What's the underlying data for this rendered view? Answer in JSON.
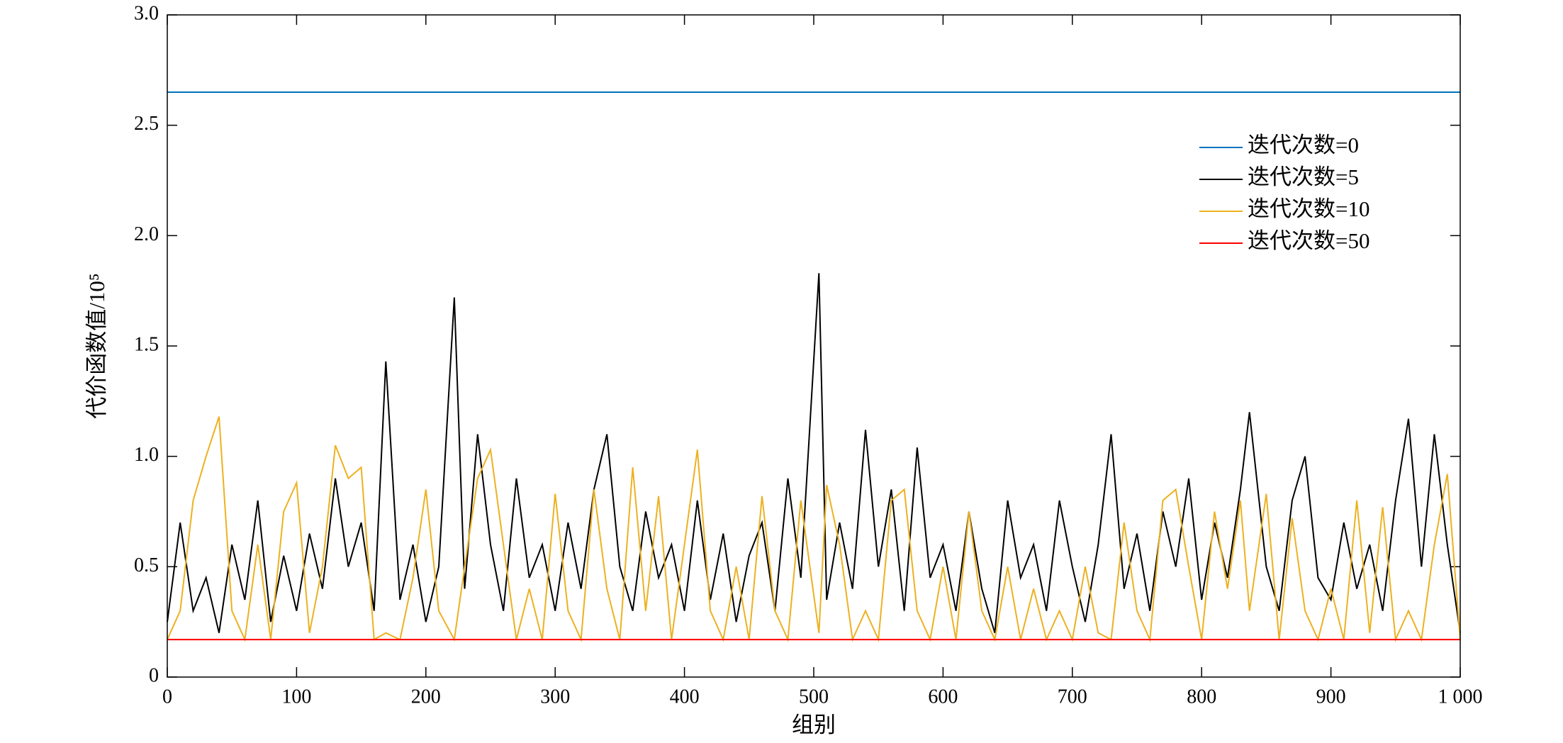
{
  "chart_data": {
    "type": "line",
    "xlabel": "组别",
    "ylabel": "代价函数值/10⁵",
    "xlim": [
      0,
      1000
    ],
    "ylim": [
      0,
      3
    ],
    "xticks": [
      0,
      100,
      200,
      300,
      400,
      500,
      600,
      700,
      800,
      900,
      {
        "value": 1000,
        "label": "1 000"
      }
    ],
    "yticks": [
      0,
      0.5,
      {
        "value": 1,
        "label": "1.0"
      },
      1.5,
      {
        "value": 2,
        "label": "2.0"
      },
      2.5,
      {
        "value": 3,
        "label": "3.0"
      }
    ],
    "legend": "upper right",
    "x": [
      0,
      10,
      20,
      30,
      40,
      50,
      60,
      70,
      80,
      90,
      100,
      110,
      120,
      130,
      140,
      150,
      160,
      169,
      180,
      190,
      200,
      210,
      222,
      230,
      240,
      250,
      260,
      270,
      280,
      290,
      300,
      310,
      320,
      330,
      340,
      350,
      360,
      370,
      380,
      390,
      400,
      410,
      420,
      430,
      440,
      450,
      460,
      470,
      480,
      490,
      504,
      510,
      520,
      530,
      540,
      550,
      560,
      570,
      580,
      590,
      600,
      610,
      620,
      630,
      640,
      650,
      660,
      670,
      680,
      690,
      700,
      710,
      720,
      730,
      740,
      750,
      760,
      770,
      780,
      790,
      800,
      810,
      820,
      830,
      837,
      850,
      860,
      870,
      880,
      890,
      900,
      910,
      920,
      930,
      940,
      950,
      960,
      970,
      980,
      990,
      1000
    ],
    "series": [
      {
        "name": "迭代次数=0",
        "color": "#0072bd",
        "values": [
          2.65,
          2.65,
          2.65,
          2.65,
          2.65,
          2.65,
          2.65,
          2.65,
          2.65,
          2.65,
          2.65,
          2.65,
          2.65,
          2.65,
          2.65,
          2.65,
          2.65,
          2.65,
          2.65,
          2.65,
          2.65,
          2.65,
          2.65,
          2.65,
          2.65,
          2.65,
          2.65,
          2.65,
          2.65,
          2.65,
          2.65,
          2.65,
          2.65,
          2.65,
          2.65,
          2.65,
          2.65,
          2.65,
          2.65,
          2.65,
          2.65,
          2.65,
          2.65,
          2.65,
          2.65,
          2.65,
          2.65,
          2.65,
          2.65,
          2.65,
          2.65,
          2.65,
          2.65,
          2.65,
          2.65,
          2.65,
          2.65,
          2.65,
          2.65,
          2.65,
          2.65,
          2.65,
          2.65,
          2.65,
          2.65,
          2.65,
          2.65,
          2.65,
          2.65,
          2.65,
          2.65,
          2.65,
          2.65,
          2.65,
          2.65,
          2.65,
          2.65,
          2.65,
          2.65,
          2.65,
          2.65,
          2.65,
          2.65,
          2.65,
          2.65,
          2.65,
          2.65,
          2.65,
          2.65,
          2.65,
          2.65,
          2.65,
          2.65,
          2.65,
          2.65,
          2.65,
          2.65,
          2.65,
          2.65,
          2.65,
          2.65
        ]
      },
      {
        "name": "迭代次数=5",
        "color": "#000000",
        "values": [
          0.25,
          0.7,
          0.3,
          0.45,
          0.2,
          0.6,
          0.35,
          0.8,
          0.25,
          0.55,
          0.3,
          0.65,
          0.4,
          0.9,
          0.5,
          0.7,
          0.3,
          1.43,
          0.35,
          0.6,
          0.25,
          0.5,
          1.72,
          0.4,
          1.1,
          0.6,
          0.3,
          0.9,
          0.45,
          0.6,
          0.3,
          0.7,
          0.4,
          0.85,
          1.1,
          0.5,
          0.3,
          0.75,
          0.45,
          0.6,
          0.3,
          0.8,
          0.35,
          0.65,
          0.25,
          0.55,
          0.7,
          0.3,
          0.9,
          0.45,
          1.83,
          0.35,
          0.7,
          0.4,
          1.12,
          0.5,
          0.85,
          0.3,
          1.04,
          0.45,
          0.6,
          0.3,
          0.75,
          0.4,
          0.2,
          0.8,
          0.45,
          0.6,
          0.3,
          0.8,
          0.5,
          0.25,
          0.6,
          1.1,
          0.4,
          0.65,
          0.3,
          0.75,
          0.5,
          0.9,
          0.35,
          0.7,
          0.45,
          0.85,
          1.2,
          0.5,
          0.3,
          0.8,
          1.0,
          0.45,
          0.35,
          0.7,
          0.4,
          0.6,
          0.3,
          0.8,
          1.17,
          0.5,
          1.1,
          0.6,
          0.2
        ]
      },
      {
        "name": "迭代次数=10",
        "color": "#edb120",
        "values": [
          0.17,
          0.3,
          0.8,
          1.0,
          1.18,
          0.3,
          0.17,
          0.6,
          0.17,
          0.75,
          0.88,
          0.2,
          0.5,
          1.05,
          0.9,
          0.95,
          0.17,
          0.2,
          0.17,
          0.45,
          0.85,
          0.3,
          0.17,
          0.5,
          0.9,
          1.03,
          0.6,
          0.17,
          0.4,
          0.17,
          0.83,
          0.3,
          0.17,
          0.85,
          0.4,
          0.17,
          0.95,
          0.3,
          0.82,
          0.17,
          0.6,
          1.03,
          0.3,
          0.17,
          0.5,
          0.17,
          0.82,
          0.3,
          0.17,
          0.8,
          0.2,
          0.87,
          0.6,
          0.17,
          0.3,
          0.17,
          0.8,
          0.85,
          0.3,
          0.17,
          0.5,
          0.17,
          0.75,
          0.3,
          0.17,
          0.5,
          0.17,
          0.4,
          0.17,
          0.3,
          0.17,
          0.5,
          0.2,
          0.17,
          0.7,
          0.3,
          0.17,
          0.8,
          0.85,
          0.5,
          0.17,
          0.75,
          0.4,
          0.8,
          0.3,
          0.83,
          0.17,
          0.72,
          0.3,
          0.17,
          0.4,
          0.17,
          0.8,
          0.2,
          0.77,
          0.17,
          0.3,
          0.17,
          0.6,
          0.92,
          0.17
        ]
      },
      {
        "name": "迭代次数=50",
        "color": "#ff0000",
        "values": [
          0.17,
          0.17,
          0.17,
          0.17,
          0.17,
          0.17,
          0.17,
          0.17,
          0.17,
          0.17,
          0.17,
          0.17,
          0.17,
          0.17,
          0.17,
          0.17,
          0.17,
          0.17,
          0.17,
          0.17,
          0.17,
          0.17,
          0.17,
          0.17,
          0.17,
          0.17,
          0.17,
          0.17,
          0.17,
          0.17,
          0.17,
          0.17,
          0.17,
          0.17,
          0.17,
          0.17,
          0.17,
          0.17,
          0.17,
          0.17,
          0.17,
          0.17,
          0.17,
          0.17,
          0.17,
          0.17,
          0.17,
          0.17,
          0.17,
          0.17,
          0.17,
          0.17,
          0.17,
          0.17,
          0.17,
          0.17,
          0.17,
          0.17,
          0.17,
          0.17,
          0.17,
          0.17,
          0.17,
          0.17,
          0.17,
          0.17,
          0.17,
          0.17,
          0.17,
          0.17,
          0.17,
          0.17,
          0.17,
          0.17,
          0.17,
          0.17,
          0.17,
          0.17,
          0.17,
          0.17,
          0.17,
          0.17,
          0.17,
          0.17,
          0.17,
          0.17,
          0.17,
          0.17,
          0.17,
          0.17,
          0.17,
          0.17,
          0.17,
          0.17,
          0.17,
          0.17,
          0.17,
          0.17,
          0.17,
          0.17,
          0.17
        ]
      }
    ]
  }
}
